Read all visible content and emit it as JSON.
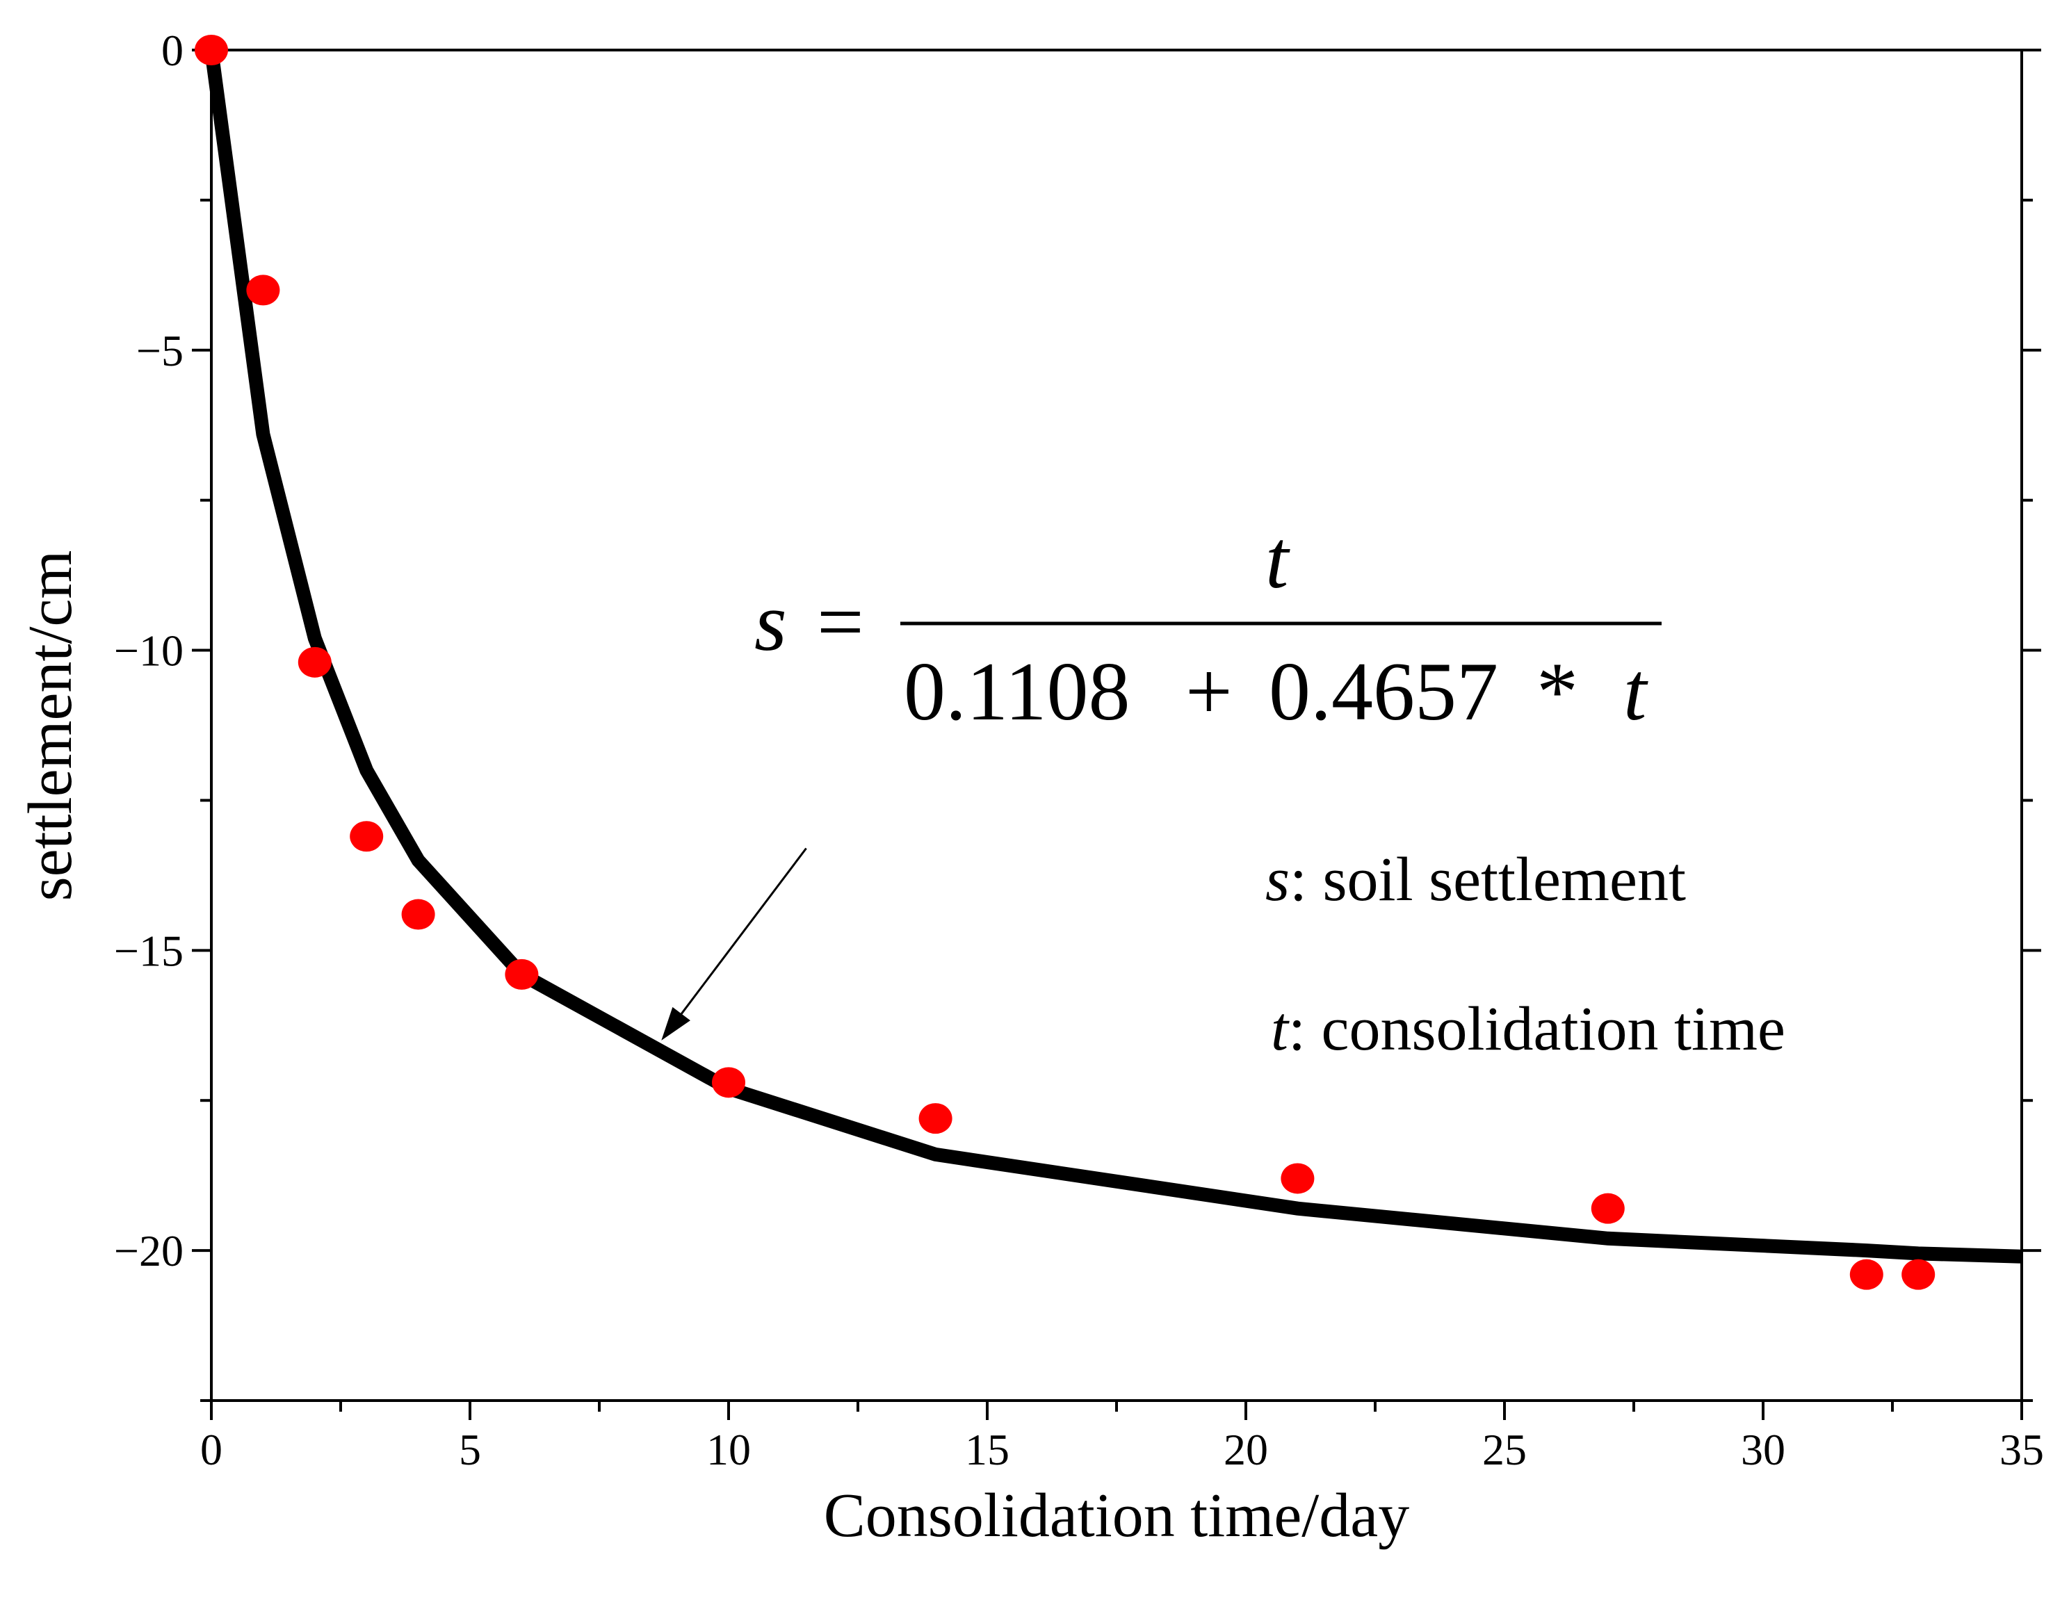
{
  "chart_data": {
    "type": "scatter",
    "title": "",
    "xlabel": "Consolidation time/day",
    "ylabel": "settlement/cm",
    "xlim": [
      0,
      35
    ],
    "ylim": [
      -22.5,
      0
    ],
    "x_ticks": [
      0,
      5,
      10,
      15,
      20,
      25,
      30,
      35
    ],
    "x_tick_labels": [
      "0",
      "5",
      "10",
      "15",
      "20",
      "25",
      "30",
      "35"
    ],
    "y_ticks": [
      0,
      -5,
      -10,
      -15,
      -20
    ],
    "y_tick_labels": [
      "0",
      "−5",
      "−10",
      "−15",
      "−20"
    ],
    "grid": false,
    "series": [
      {
        "name": "measured",
        "kind": "scatter",
        "color": "#ff0000",
        "x": [
          0,
          1,
          2,
          3,
          4,
          6,
          10,
          14,
          21,
          27,
          32,
          33
        ],
        "y": [
          0,
          -4.0,
          -10.2,
          -13.1,
          -14.4,
          -15.4,
          -17.2,
          -17.8,
          -18.8,
          -19.3,
          -20.4,
          -20.4
        ]
      },
      {
        "name": "fitted",
        "kind": "line",
        "color": "#000000",
        "x": [
          0,
          1,
          2,
          3,
          4,
          6,
          10,
          14,
          21,
          27,
          32,
          33,
          35
        ],
        "y": [
          0,
          -6.4,
          -9.8,
          -12.0,
          -13.5,
          -15.4,
          -17.3,
          -18.4,
          -19.3,
          -19.8,
          -20.0,
          -20.05,
          -20.1
        ]
      }
    ],
    "annotations": {
      "equation": {
        "lhs_var": "s",
        "equals": "=",
        "numerator": "t",
        "denominator_a": "0.1108",
        "plus": "+",
        "denominator_b": "0.4657",
        "times": "*",
        "denominator_var": "t"
      },
      "legend_lines": [
        {
          "var": "s",
          "text": ": soil settlement"
        },
        {
          "var": "t",
          "text": ": consolidation time"
        }
      ],
      "arrow": {
        "from": [
          11.5,
          -13.3
        ],
        "to": [
          8.7,
          -16.5
        ]
      }
    }
  }
}
